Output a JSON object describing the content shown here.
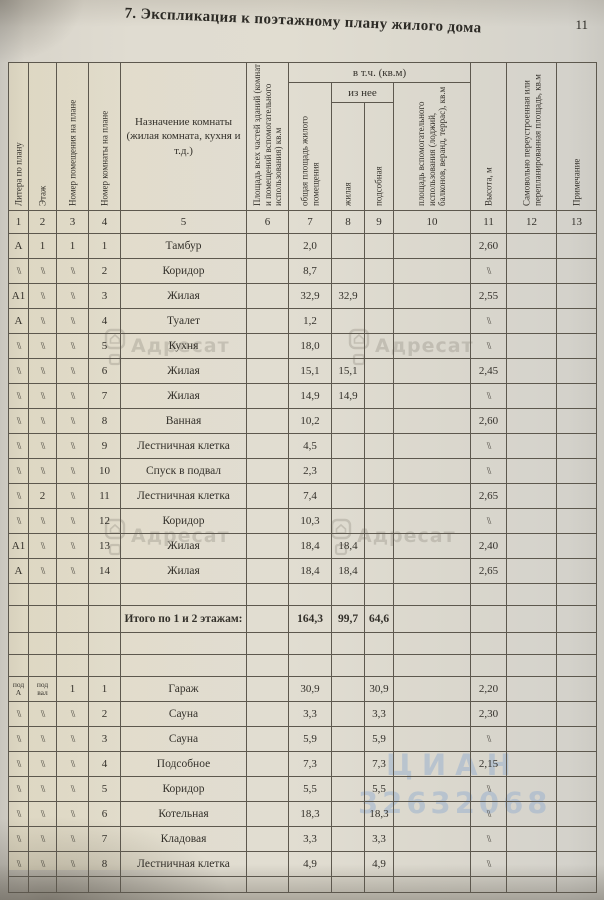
{
  "page": {
    "title": "7. Экспликация к поэтажному плану жилого дома",
    "page_number": "11"
  },
  "table": {
    "header": {
      "col1": "Литера по плану",
      "col2": "Этаж",
      "col3": "Номер помещения на плане",
      "col4": "Номер комнаты на плане",
      "col5": "Назначение комнаты (жилая комната, кухня и т.д.)",
      "col6": "Площадь всех частей зданий (комнат и помещений вспомогательного использования) кв.м",
      "group_incl": "в т.ч. (кв.м)",
      "group_iznee": "из нее",
      "col7": "общая площадь жилого помещения",
      "col8": "жилая",
      "col9": "подсобная",
      "col10": "площадь вспомогательного использования (лоджий, балконов, веранд, террас), кв.м",
      "col11": "Высота, м",
      "col12": "Самовольно переустроенная или перепланированная площадь, кв.м",
      "col13": "Примечание"
    },
    "column_numbers": [
      "1",
      "2",
      "3",
      "4",
      "5",
      "6",
      "7",
      "8",
      "9",
      "10",
      "11",
      "12",
      "13"
    ],
    "body_rows": [
      {
        "type": "data",
        "cells": [
          "А",
          "1",
          "1",
          "1",
          "Тамбур",
          "",
          "2,0",
          "",
          "",
          "",
          "2,60",
          "",
          ""
        ]
      },
      {
        "type": "data",
        "cells": [
          "\\\\",
          "\\\\",
          "\\\\",
          "2",
          "Коридор",
          "",
          "8,7",
          "",
          "",
          "",
          "\\\\",
          "",
          ""
        ]
      },
      {
        "type": "data",
        "cells": [
          "А1",
          "\\\\",
          "\\\\",
          "3",
          "Жилая",
          "",
          "32,9",
          "32,9",
          "",
          "",
          "2,55",
          "",
          ""
        ]
      },
      {
        "type": "data",
        "cells": [
          "А",
          "\\\\",
          "\\\\",
          "4",
          "Туалет",
          "",
          "1,2",
          "",
          "",
          "",
          "\\\\",
          "",
          ""
        ]
      },
      {
        "type": "data",
        "cells": [
          "\\\\",
          "\\\\",
          "\\\\",
          "5",
          "Кухня",
          "",
          "18,0",
          "",
          "",
          "",
          "\\\\",
          "",
          ""
        ]
      },
      {
        "type": "data",
        "cells": [
          "\\\\",
          "\\\\",
          "\\\\",
          "6",
          "Жилая",
          "",
          "15,1",
          "15,1",
          "",
          "",
          "2,45",
          "",
          ""
        ]
      },
      {
        "type": "data",
        "cells": [
          "\\\\",
          "\\\\",
          "\\\\",
          "7",
          "Жилая",
          "",
          "14,9",
          "14,9",
          "",
          "",
          "\\\\",
          "",
          ""
        ]
      },
      {
        "type": "data",
        "cells": [
          "\\\\",
          "\\\\",
          "\\\\",
          "8",
          "Ванная",
          "",
          "10,2",
          "",
          "",
          "",
          "2,60",
          "",
          ""
        ]
      },
      {
        "type": "data",
        "cells": [
          "\\\\",
          "\\\\",
          "\\\\",
          "9",
          "Лестничная клетка",
          "",
          "4,5",
          "",
          "",
          "",
          "\\\\",
          "",
          ""
        ]
      },
      {
        "type": "data",
        "cells": [
          "\\\\",
          "\\\\",
          "\\\\",
          "10",
          "Спуск в подвал",
          "",
          "2,3",
          "",
          "",
          "",
          "\\\\",
          "",
          ""
        ]
      },
      {
        "type": "data",
        "cells": [
          "\\\\",
          "2",
          "\\\\",
          "11",
          "Лестничная клетка",
          "",
          "7,4",
          "",
          "",
          "",
          "2,65",
          "",
          ""
        ]
      },
      {
        "type": "data",
        "cells": [
          "\\\\",
          "\\\\",
          "\\\\",
          "12",
          "Коридор",
          "",
          "10,3",
          "",
          "",
          "",
          "\\\\",
          "",
          ""
        ]
      },
      {
        "type": "data",
        "cells": [
          "А1",
          "\\\\",
          "\\\\",
          "13",
          "Жилая",
          "",
          "18,4",
          "18,4",
          "",
          "",
          "2,40",
          "",
          ""
        ]
      },
      {
        "type": "data",
        "cells": [
          "А",
          "\\\\",
          "\\\\",
          "14",
          "Жилая",
          "",
          "18,4",
          "18,4",
          "",
          "",
          "2,65",
          "",
          ""
        ]
      },
      {
        "type": "empty"
      },
      {
        "type": "total",
        "cells": [
          "",
          "",
          "",
          "",
          "Итого по 1 и 2 этажам:",
          "",
          "164,3",
          "99,7",
          "64,6",
          "",
          "",
          "",
          ""
        ]
      },
      {
        "type": "empty"
      },
      {
        "type": "empty"
      },
      {
        "type": "data",
        "cells": [
          "под\nА",
          "под\nвал",
          "1",
          "1",
          "Гараж",
          "",
          "30,9",
          "",
          "30,9",
          "",
          "2,20",
          "",
          ""
        ]
      },
      {
        "type": "data",
        "cells": [
          "\\\\",
          "\\\\",
          "\\\\",
          "2",
          "Сауна",
          "",
          "3,3",
          "",
          "3,3",
          "",
          "2,30",
          "",
          ""
        ]
      },
      {
        "type": "data",
        "cells": [
          "\\\\",
          "\\\\",
          "\\\\",
          "3",
          "Сауна",
          "",
          "5,9",
          "",
          "5,9",
          "",
          "\\\\",
          "",
          ""
        ]
      },
      {
        "type": "data",
        "cells": [
          "\\\\",
          "\\\\",
          "\\\\",
          "4",
          "Подсобное",
          "",
          "7,3",
          "",
          "7,3",
          "",
          "2,15",
          "",
          ""
        ]
      },
      {
        "type": "data",
        "cells": [
          "\\\\",
          "\\\\",
          "\\\\",
          "5",
          "Коридор",
          "",
          "5,5",
          "",
          "5,5",
          "",
          "\\\\",
          "",
          ""
        ]
      },
      {
        "type": "data",
        "cells": [
          "\\\\",
          "\\\\",
          "\\\\",
          "6",
          "Котельная",
          "",
          "18,3",
          "",
          "18,3",
          "",
          "\\\\",
          "",
          ""
        ]
      },
      {
        "type": "data",
        "cells": [
          "\\\\",
          "\\\\",
          "\\\\",
          "7",
          "Кладовая",
          "",
          "3,3",
          "",
          "3,3",
          "",
          "\\\\",
          "",
          ""
        ]
      },
      {
        "type": "data",
        "cells": [
          "\\\\",
          "\\\\",
          "\\\\",
          "8",
          "Лестничная клетка",
          "",
          "4,9",
          "",
          "4,9",
          "",
          "\\\\",
          "",
          ""
        ]
      },
      {
        "type": "spacer"
      }
    ]
  },
  "watermarks": {
    "brand": "Адресат",
    "blue_word": "ЦИАН",
    "blue_number": "32632068"
  },
  "colors": {
    "paper": "#e0dcd1",
    "line": "#5d584e",
    "ink": "#33302a",
    "watermark_gray": "#8d887d",
    "watermark_blue": "#9db3cf"
  }
}
